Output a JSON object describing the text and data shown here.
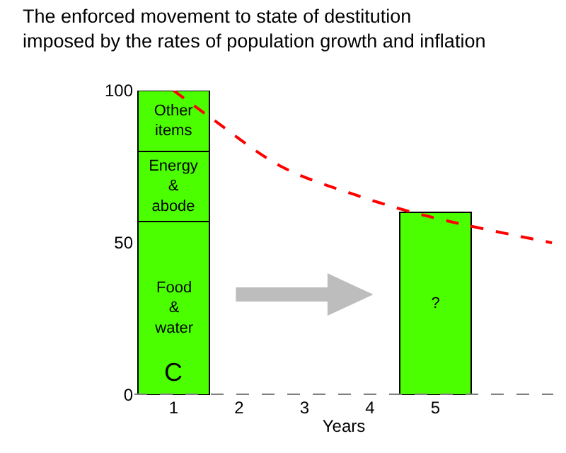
{
  "chart_data": {
    "type": "bar",
    "title": "The enforced movement to state of destitution imposed by the rates of population growth and inflation",
    "xlabel": "Years",
    "stacked": true,
    "x": [
      1,
      5
    ],
    "series": [
      {
        "color": "#4cff00",
        "values": [
          57,
          null
        ],
        "value_labels": [
          "Food & water",
          null
        ]
      },
      {
        "color": "#4cff00",
        "values": [
          23,
          null
        ],
        "value_labels": [
          "Energy & abode",
          null
        ]
      },
      {
        "color": "#4cff00",
        "values": [
          20,
          null
        ],
        "value_labels": [
          "Other items",
          null
        ]
      },
      {
        "color": "#4cff00",
        "values": [
          null,
          60
        ],
        "value_labels": [
          null,
          "?"
        ]
      },
      {
        "type": "line",
        "color": "#ff0000",
        "line_style": "dashed",
        "marker": "none",
        "x": [
          1,
          1.57,
          2.65,
          3.74,
          4.83,
          6.78
        ],
        "values": [
          100,
          91,
          75,
          66,
          59,
          50
        ]
      }
    ],
    "annotations": [
      "C"
    ],
    "ref_lines": [
      {
        "axis": "y",
        "value": 0,
        "color": "#808080",
        "line_style": "dashed"
      }
    ],
    "xlim": [
      0.4,
      6.8
    ],
    "xticks": [
      1,
      2,
      3,
      4,
      5
    ],
    "ylim": [
      0,
      100
    ],
    "yticks": [
      0,
      50,
      100
    ],
    "grid": false
  }
}
